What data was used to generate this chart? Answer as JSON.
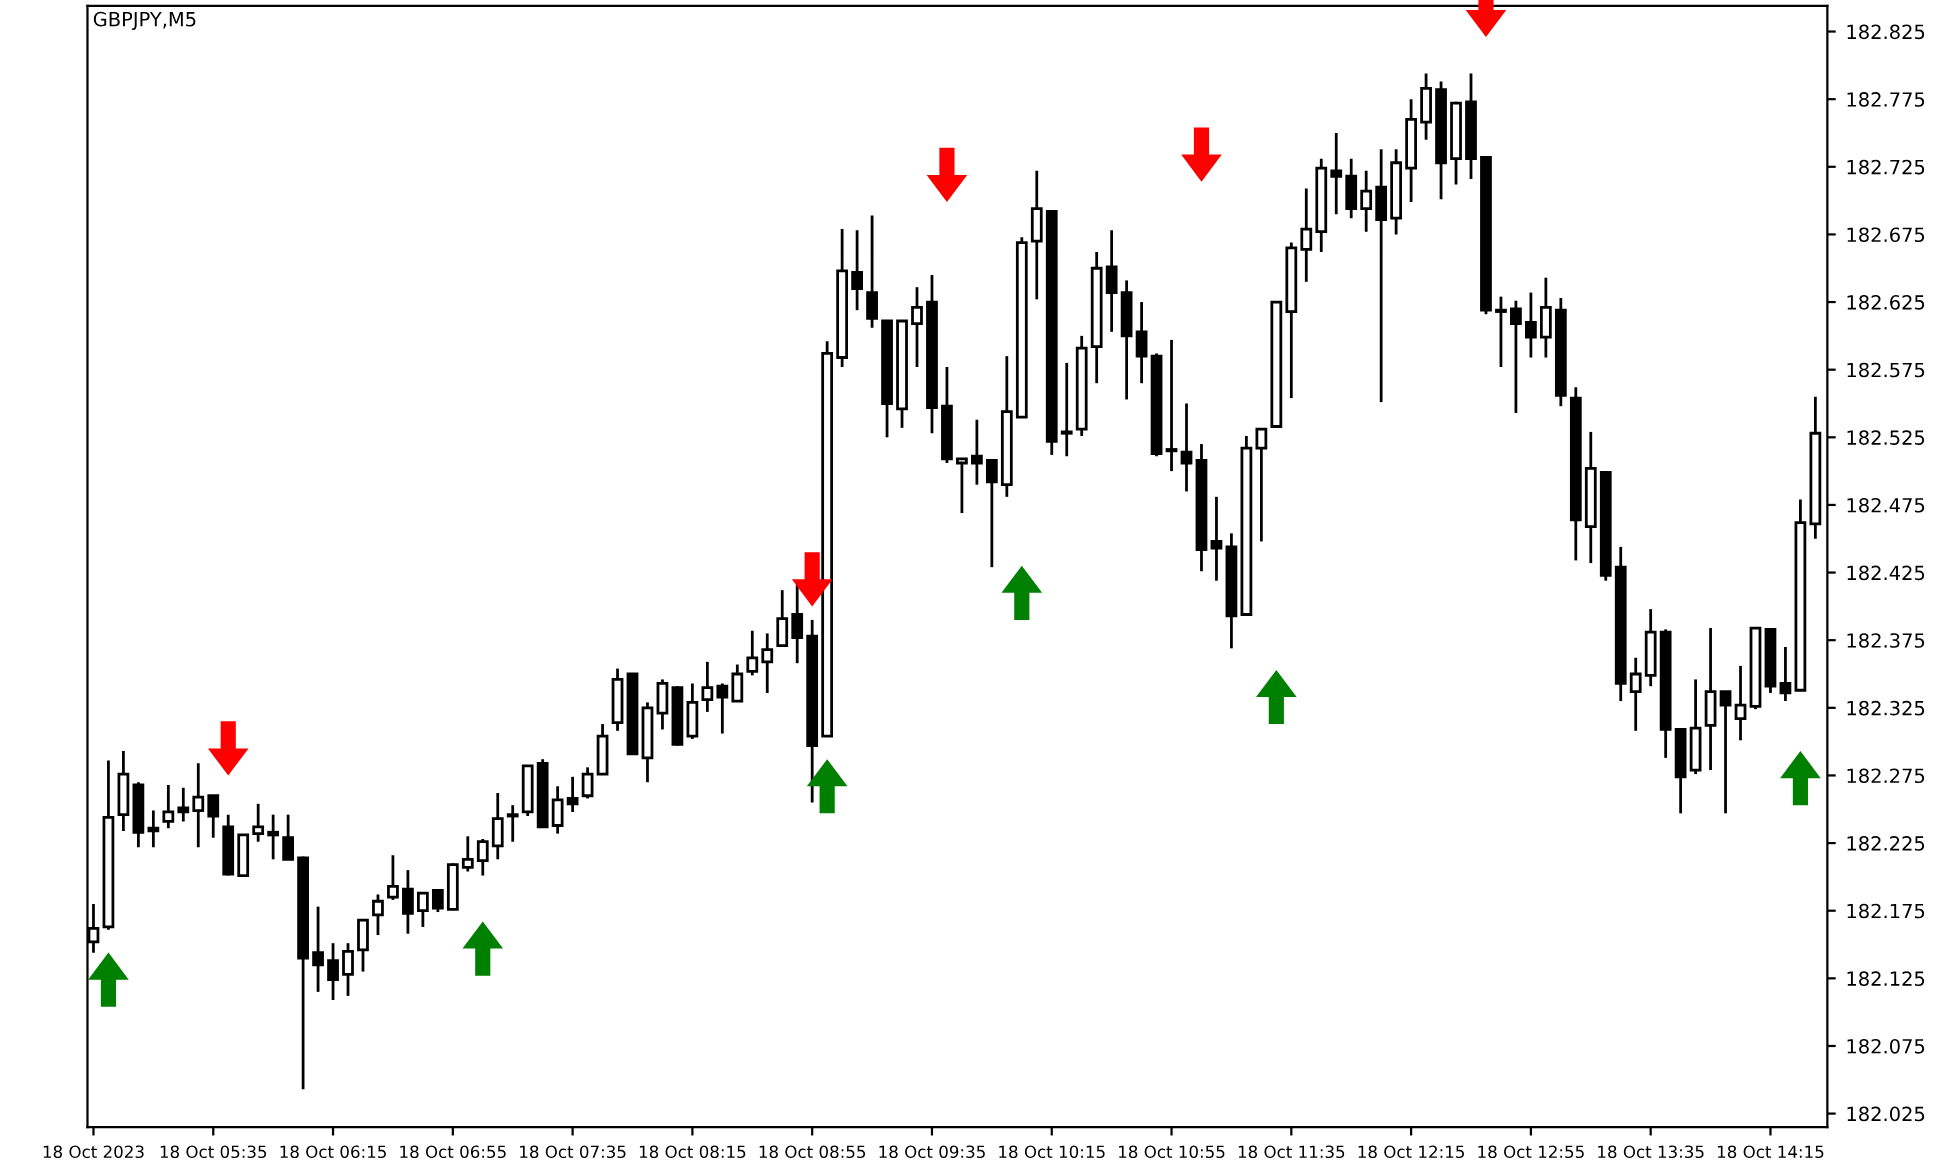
{
  "chart_data": {
    "type": "candlestick",
    "title": "GBPJPY,M5",
    "x": [
      "2023-10-18T04:55",
      "2023-10-18T05:00",
      "2023-10-18T05:05",
      "2023-10-18T05:10",
      "2023-10-18T05:15",
      "2023-10-18T05:20",
      "2023-10-18T05:25",
      "2023-10-18T05:30",
      "2023-10-18T05:35",
      "2023-10-18T05:40",
      "2023-10-18T05:45",
      "2023-10-18T05:50",
      "2023-10-18T05:55",
      "2023-10-18T06:00",
      "2023-10-18T06:05",
      "2023-10-18T06:10",
      "2023-10-18T06:15",
      "2023-10-18T06:20",
      "2023-10-18T06:25",
      "2023-10-18T06:30",
      "2023-10-18T06:35",
      "2023-10-18T06:40",
      "2023-10-18T06:45",
      "2023-10-18T06:50",
      "2023-10-18T06:55",
      "2023-10-18T07:00",
      "2023-10-18T07:05",
      "2023-10-18T07:10",
      "2023-10-18T07:15",
      "2023-10-18T07:20",
      "2023-10-18T07:25",
      "2023-10-18T07:30",
      "2023-10-18T07:35",
      "2023-10-18T07:40",
      "2023-10-18T07:45",
      "2023-10-18T07:50",
      "2023-10-18T07:55",
      "2023-10-18T08:00",
      "2023-10-18T08:05",
      "2023-10-18T08:10",
      "2023-10-18T08:15",
      "2023-10-18T08:20",
      "2023-10-18T08:25",
      "2023-10-18T08:30",
      "2023-10-18T08:35",
      "2023-10-18T08:40",
      "2023-10-18T08:45",
      "2023-10-18T08:50",
      "2023-10-18T08:55",
      "2023-10-18T09:00",
      "2023-10-18T09:05",
      "2023-10-18T09:10",
      "2023-10-18T09:15",
      "2023-10-18T09:20",
      "2023-10-18T09:25",
      "2023-10-18T09:30",
      "2023-10-18T09:35",
      "2023-10-18T09:40",
      "2023-10-18T09:45",
      "2023-10-18T09:50",
      "2023-10-18T09:55",
      "2023-10-18T10:00",
      "2023-10-18T10:05",
      "2023-10-18T10:10",
      "2023-10-18T10:15",
      "2023-10-18T10:20",
      "2023-10-18T10:25",
      "2023-10-18T10:30",
      "2023-10-18T10:35",
      "2023-10-18T10:40",
      "2023-10-18T10:45",
      "2023-10-18T10:50",
      "2023-10-18T10:55",
      "2023-10-18T11:00",
      "2023-10-18T11:05",
      "2023-10-18T11:10",
      "2023-10-18T11:15",
      "2023-10-18T11:20",
      "2023-10-18T11:25",
      "2023-10-18T11:30",
      "2023-10-18T11:35",
      "2023-10-18T11:40",
      "2023-10-18T11:45",
      "2023-10-18T11:50",
      "2023-10-18T11:55",
      "2023-10-18T12:00",
      "2023-10-18T12:05",
      "2023-10-18T12:10",
      "2023-10-18T12:15",
      "2023-10-18T12:20",
      "2023-10-18T12:25",
      "2023-10-18T12:30",
      "2023-10-18T12:35",
      "2023-10-18T12:40",
      "2023-10-18T12:45",
      "2023-10-18T12:50",
      "2023-10-18T12:55",
      "2023-10-18T13:00",
      "2023-10-18T13:05",
      "2023-10-18T13:10",
      "2023-10-18T13:15",
      "2023-10-18T13:20",
      "2023-10-18T13:25",
      "2023-10-18T13:30",
      "2023-10-18T13:35",
      "2023-10-18T13:40",
      "2023-10-18T13:45",
      "2023-10-18T13:50",
      "2023-10-18T13:55",
      "2023-10-18T14:00",
      "2023-10-18T14:05",
      "2023-10-18T14:10",
      "2023-10-18T14:15",
      "2023-10-18T14:20",
      "2023-10-18T14:25",
      "2023-10-18T14:30"
    ],
    "ohlc": [
      [
        182.152,
        182.18,
        182.144,
        182.162
      ],
      [
        182.163,
        182.286,
        182.161,
        182.244
      ],
      [
        182.246,
        182.293,
        182.234,
        182.276
      ],
      [
        182.268,
        182.27,
        182.222,
        182.233
      ],
      [
        182.234,
        182.249,
        182.222,
        182.236
      ],
      [
        182.241,
        182.268,
        182.236,
        182.248
      ],
      [
        182.251,
        182.266,
        182.241,
        182.248
      ],
      [
        182.249,
        182.284,
        182.222,
        182.259
      ],
      [
        182.26,
        182.26,
        182.229,
        182.245
      ],
      [
        182.237,
        182.246,
        182.201,
        182.202
      ],
      [
        182.201,
        182.231,
        182.201,
        182.231
      ],
      [
        182.232,
        182.254,
        182.226,
        182.237
      ],
      [
        182.233,
        182.246,
        182.213,
        182.231
      ],
      [
        182.229,
        182.246,
        182.213,
        182.213
      ],
      [
        182.214,
        182.215,
        182.043,
        182.14
      ],
      [
        182.144,
        182.178,
        182.115,
        182.135
      ],
      [
        182.138,
        182.151,
        182.109,
        182.124
      ],
      [
        182.128,
        182.151,
        182.112,
        182.145
      ],
      [
        182.146,
        182.168,
        182.13,
        182.168
      ],
      [
        182.172,
        182.187,
        182.157,
        182.182
      ],
      [
        182.185,
        182.216,
        182.183,
        182.193
      ],
      [
        182.191,
        182.205,
        182.158,
        182.173
      ],
      [
        182.175,
        182.188,
        182.163,
        182.188
      ],
      [
        182.19,
        182.19,
        182.174,
        182.177
      ],
      [
        182.176,
        182.21,
        182.176,
        182.209
      ],
      [
        182.207,
        182.23,
        182.204,
        182.213
      ],
      [
        182.212,
        182.228,
        182.201,
        182.226
      ],
      [
        182.223,
        182.262,
        182.213,
        182.243
      ],
      [
        182.245,
        182.253,
        182.226,
        182.246
      ],
      [
        182.248,
        182.282,
        182.245,
        182.282
      ],
      [
        182.284,
        182.287,
        182.237,
        182.237
      ],
      [
        182.238,
        182.267,
        182.232,
        182.257
      ],
      [
        182.258,
        182.274,
        182.248,
        182.254
      ],
      [
        182.26,
        182.281,
        182.258,
        182.276
      ],
      [
        182.276,
        182.313,
        182.276,
        182.304
      ],
      [
        182.314,
        182.354,
        182.308,
        182.346
      ],
      [
        182.35,
        182.35,
        182.291,
        182.291
      ],
      [
        182.288,
        182.329,
        182.27,
        182.325
      ],
      [
        182.321,
        182.346,
        182.309,
        182.343
      ],
      [
        182.34,
        182.341,
        182.297,
        182.298
      ],
      [
        182.304,
        182.343,
        182.302,
        182.329
      ],
      [
        182.331,
        182.359,
        182.322,
        182.34
      ],
      [
        182.341,
        182.343,
        182.306,
        182.333
      ],
      [
        182.33,
        182.357,
        182.33,
        182.35
      ],
      [
        182.352,
        182.382,
        182.349,
        182.362
      ],
      [
        182.359,
        182.38,
        182.336,
        182.368
      ],
      [
        182.371,
        182.412,
        182.371,
        182.391
      ],
      [
        182.394,
        182.419,
        182.358,
        182.377
      ],
      [
        182.378,
        182.39,
        182.255,
        182.297
      ],
      [
        182.304,
        182.596,
        182.304,
        182.587
      ],
      [
        182.584,
        182.679,
        182.577,
        182.648
      ],
      [
        182.647,
        182.678,
        182.619,
        182.635
      ],
      [
        182.632,
        182.689,
        182.606,
        182.613
      ],
      [
        182.611,
        182.611,
        182.525,
        182.55
      ],
      [
        182.546,
        182.611,
        182.532,
        182.611
      ],
      [
        182.609,
        182.636,
        182.577,
        182.621
      ],
      [
        182.625,
        182.645,
        182.528,
        182.547
      ],
      [
        182.548,
        182.577,
        182.506,
        182.509
      ],
      [
        182.506,
        182.509,
        182.469,
        182.509
      ],
      [
        182.511,
        182.538,
        182.49,
        182.506
      ],
      [
        182.508,
        182.508,
        182.429,
        182.492
      ],
      [
        182.49,
        182.585,
        182.481,
        182.544
      ],
      [
        182.54,
        182.673,
        182.54,
        182.669
      ],
      [
        182.67,
        182.722,
        182.627,
        182.694
      ],
      [
        182.692,
        182.692,
        182.512,
        182.522
      ],
      [
        182.528,
        182.58,
        182.511,
        182.529
      ],
      [
        182.531,
        182.6,
        182.526,
        182.591
      ],
      [
        182.592,
        182.662,
        182.565,
        182.65
      ],
      [
        182.651,
        182.678,
        182.603,
        182.632
      ],
      [
        182.632,
        182.641,
        182.553,
        182.6
      ],
      [
        182.603,
        182.625,
        182.565,
        182.585
      ],
      [
        182.585,
        182.587,
        182.511,
        182.513
      ],
      [
        182.515,
        182.597,
        182.5,
        182.516
      ],
      [
        182.514,
        182.55,
        182.485,
        182.506
      ],
      [
        182.508,
        182.52,
        182.426,
        182.442
      ],
      [
        182.448,
        182.481,
        182.419,
        182.443
      ],
      [
        182.444,
        182.454,
        182.369,
        182.393
      ],
      [
        182.394,
        182.526,
        182.394,
        182.517
      ],
      [
        182.517,
        182.531,
        182.448,
        182.531
      ],
      [
        182.533,
        182.625,
        182.533,
        182.625
      ],
      [
        182.618,
        182.669,
        182.554,
        182.665
      ],
      [
        182.664,
        182.709,
        182.64,
        182.679
      ],
      [
        182.677,
        182.731,
        182.662,
        182.724
      ],
      [
        182.722,
        182.75,
        182.69,
        182.718
      ],
      [
        182.718,
        182.731,
        182.687,
        182.694
      ],
      [
        182.694,
        182.722,
        182.677,
        182.707
      ],
      [
        182.71,
        182.738,
        182.551,
        182.686
      ],
      [
        182.687,
        182.738,
        182.675,
        182.728
      ],
      [
        182.724,
        182.775,
        182.699,
        182.76
      ],
      [
        182.758,
        182.794,
        182.745,
        182.783
      ],
      [
        182.782,
        182.788,
        182.701,
        182.728
      ],
      [
        182.731,
        182.773,
        182.712,
        182.772
      ],
      [
        182.773,
        182.794,
        182.716,
        182.731
      ],
      [
        182.732,
        182.732,
        182.616,
        182.619
      ],
      [
        182.618,
        182.629,
        182.577,
        182.619
      ],
      [
        182.62,
        182.626,
        182.543,
        182.609
      ],
      [
        182.61,
        182.632,
        182.584,
        182.599
      ],
      [
        182.599,
        182.643,
        182.584,
        182.621
      ],
      [
        182.619,
        182.628,
        182.548,
        182.556
      ],
      [
        182.554,
        182.562,
        182.434,
        182.464
      ],
      [
        182.459,
        182.529,
        182.432,
        182.502
      ],
      [
        182.499,
        182.499,
        182.419,
        182.423
      ],
      [
        182.429,
        182.444,
        182.33,
        182.343
      ],
      [
        182.337,
        182.362,
        182.308,
        182.35
      ],
      [
        182.349,
        182.398,
        182.341,
        182.381
      ],
      [
        182.381,
        182.383,
        182.288,
        182.309
      ],
      [
        182.309,
        182.309,
        182.247,
        182.274
      ],
      [
        182.279,
        182.346,
        182.276,
        182.31
      ],
      [
        182.312,
        182.384,
        182.279,
        182.337
      ],
      [
        182.337,
        182.337,
        182.247,
        182.327
      ],
      [
        182.317,
        182.356,
        182.301,
        182.327
      ],
      [
        182.326,
        182.384,
        182.324,
        182.384
      ],
      [
        182.383,
        182.383,
        182.336,
        182.341
      ],
      [
        182.343,
        182.37,
        182.33,
        182.336
      ],
      [
        182.338,
        182.479,
        182.338,
        182.462
      ],
      [
        182.461,
        182.555,
        182.45,
        182.528
      ]
    ],
    "series": [
      {
        "type": "scatter",
        "color": "#008000",
        "x": [
          "2023-10-18T05:00",
          "2023-10-18T07:05",
          "2023-10-18T09:00",
          "2023-10-18T10:05",
          "2023-10-18T11:30",
          "2023-10-18T14:25"
        ],
        "values": [
          182.124,
          182.147,
          182.267,
          182.41,
          182.333,
          182.273
        ]
      },
      {
        "type": "scatter",
        "color": "#ff0000",
        "x": [
          "2023-10-18T05:40",
          "2023-10-18T08:55",
          "2023-10-18T09:40",
          "2023-10-18T11:05",
          "2023-10-18T12:40"
        ],
        "values": [
          182.295,
          182.42,
          182.719,
          182.734,
          182.841
        ]
      }
    ],
    "xlim": [
      "2023-10-18T04:53",
      "2023-10-18T14:34"
    ],
    "xticks": [
      {
        "value": "2023-10-18T04:55",
        "label": "18 Oct 2023"
      },
      {
        "value": "2023-10-18T05:35",
        "label": "18 Oct 05:35"
      },
      {
        "value": "2023-10-18T06:15",
        "label": "18 Oct 06:15"
      },
      {
        "value": "2023-10-18T06:55",
        "label": "18 Oct 06:55"
      },
      {
        "value": "2023-10-18T07:35",
        "label": "18 Oct 07:35"
      },
      {
        "value": "2023-10-18T08:15",
        "label": "18 Oct 08:15"
      },
      {
        "value": "2023-10-18T08:55",
        "label": "18 Oct 08:55"
      },
      {
        "value": "2023-10-18T09:35",
        "label": "18 Oct 09:35"
      },
      {
        "value": "2023-10-18T10:15",
        "label": "18 Oct 10:15"
      },
      {
        "value": "2023-10-18T10:55",
        "label": "18 Oct 10:55"
      },
      {
        "value": "2023-10-18T11:35",
        "label": "18 Oct 11:35"
      },
      {
        "value": "2023-10-18T12:15",
        "label": "18 Oct 12:15"
      },
      {
        "value": "2023-10-18T12:55",
        "label": "18 Oct 12:55"
      },
      {
        "value": "2023-10-18T13:35",
        "label": "18 Oct 13:35"
      },
      {
        "value": "2023-10-18T14:15",
        "label": "18 Oct 14:15"
      }
    ],
    "ylim": [
      182.015,
      182.844
    ],
    "yticks": [
      182.025,
      182.075,
      182.125,
      182.175,
      182.225,
      182.275,
      182.325,
      182.375,
      182.425,
      182.475,
      182.525,
      182.575,
      182.625,
      182.675,
      182.725,
      182.775,
      182.825
    ],
    "grid": false
  }
}
